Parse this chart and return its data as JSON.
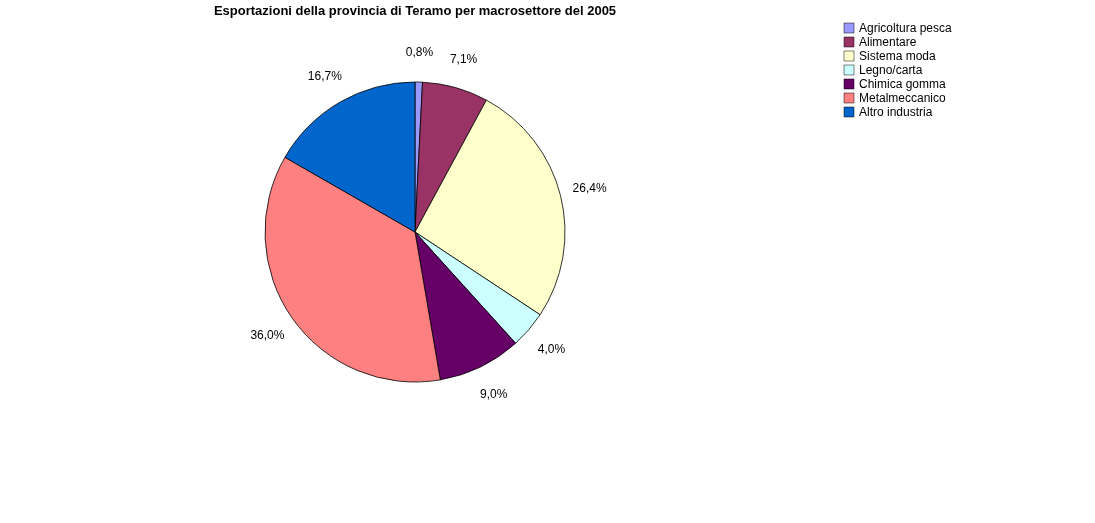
{
  "chart_data": {
    "type": "pie",
    "title": "Esportazioni della provincia di Teramo per macrosettore del 2005",
    "categories": [
      "Agricoltura pesca",
      "Alimentare",
      "Sistema moda",
      "Legno/carta",
      "Chimica gomma",
      "Metalmeccanico",
      "Altro industria"
    ],
    "values": [
      0.8,
      7.1,
      26.4,
      4.0,
      9.0,
      36.0,
      16.7
    ],
    "colors": [
      "#9999ff",
      "#993366",
      "#ffffcc",
      "#ccffff",
      "#660066",
      "#ff8080",
      "#0066cc"
    ],
    "value_labels": [
      "0,8%",
      "7,1%",
      "26,4%",
      "4,0%",
      "9,0%",
      "36,0%",
      "16,7%"
    ],
    "legend": "right"
  }
}
